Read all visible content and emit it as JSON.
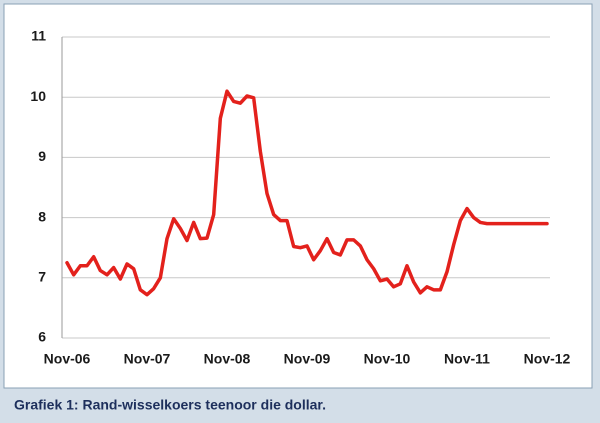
{
  "chart_data": {
    "type": "line",
    "caption": "Grafiek 1: Rand-wisselkoers teenoor die dollar.",
    "categories": [
      "Nov-06",
      null,
      null,
      null,
      null,
      null,
      null,
      null,
      null,
      null,
      null,
      null,
      "Nov-07",
      null,
      null,
      null,
      null,
      null,
      null,
      null,
      null,
      null,
      null,
      null,
      "Nov-08",
      null,
      null,
      null,
      null,
      null,
      null,
      null,
      null,
      null,
      null,
      null,
      "Nov-09",
      null,
      null,
      null,
      null,
      null,
      null,
      null,
      null,
      null,
      null,
      null,
      "Nov-10",
      null,
      null,
      null,
      null,
      null,
      null,
      null,
      null,
      null,
      null,
      null,
      "Nov-11",
      null,
      null,
      null,
      null,
      null,
      null,
      null,
      null,
      null,
      null,
      null,
      "Nov-12"
    ],
    "values": [
      7.25,
      7.05,
      7.2,
      7.2,
      7.35,
      7.12,
      7.05,
      7.17,
      6.98,
      7.23,
      7.15,
      6.8,
      6.72,
      6.82,
      7.0,
      7.65,
      7.98,
      7.82,
      7.62,
      7.92,
      7.65,
      7.66,
      8.05,
      9.65,
      10.1,
      9.93,
      9.9,
      10.02,
      9.99,
      9.1,
      8.4,
      8.05,
      7.95,
      7.95,
      7.52,
      7.5,
      7.53,
      7.3,
      7.45,
      7.65,
      7.42,
      7.38,
      7.63,
      7.63,
      7.53,
      7.3,
      7.15,
      6.95,
      6.98,
      6.85,
      6.9,
      7.2,
      6.93,
      6.75,
      6.85,
      6.8,
      6.8,
      7.1,
      7.55,
      7.95,
      8.15,
      8.0,
      7.92,
      7.9,
      7.9,
      7.9,
      7.9,
      7.9,
      7.9,
      7.9,
      7.9,
      7.9,
      7.9
    ],
    "color": "#e3211c",
    "ylim": [
      6,
      11
    ],
    "yticks": [
      6,
      7,
      8,
      9,
      10,
      11
    ],
    "grid": true
  }
}
